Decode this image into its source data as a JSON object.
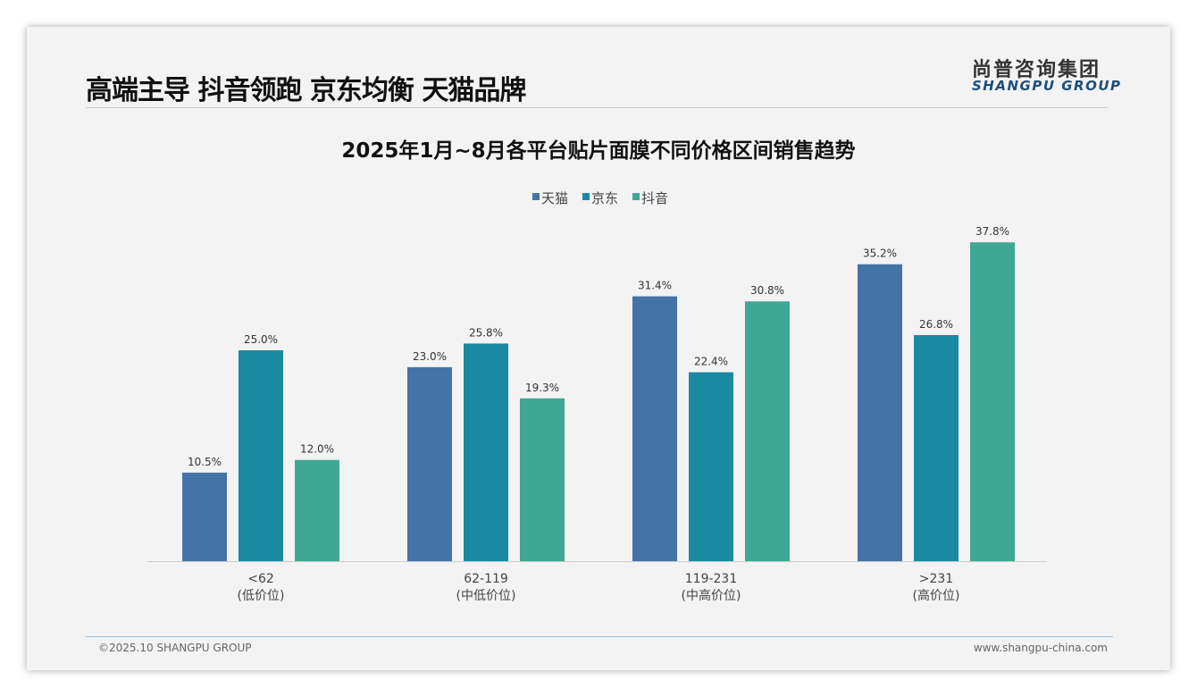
{
  "header": {
    "title": "高端主导 抖音领跑 京东均衡 天猫品牌",
    "logo_cn": "尚普咨询集团",
    "logo_en": "SHANGPU GROUP"
  },
  "footer": {
    "copyright": "©2025.10 SHANGPU GROUP",
    "website": "www.shangpu-china.com"
  },
  "chart_data": {
    "type": "bar",
    "title": "2025年1月~8月各平台贴片面膜不同价格区间销售趋势",
    "categories": [
      [
        "<62",
        "(低价位)"
      ],
      [
        "62-119",
        "(中低价位)"
      ],
      [
        "119-231",
        "(中高价位)"
      ],
      [
        ">231",
        "(高价位)"
      ]
    ],
    "series": [
      {
        "name": "天猫",
        "color": "#4473a8",
        "values": [
          10.5,
          23.0,
          31.4,
          35.2
        ]
      },
      {
        "name": "京东",
        "color": "#1a8aa3",
        "values": [
          25.0,
          25.8,
          22.4,
          26.8
        ]
      },
      {
        "name": "抖音",
        "color": "#40a793",
        "values": [
          12.0,
          19.3,
          30.8,
          37.8
        ]
      }
    ],
    "value_format": "percent_1dp",
    "legend": "top-center",
    "ylim": [
      0,
      40
    ],
    "grid": false
  }
}
